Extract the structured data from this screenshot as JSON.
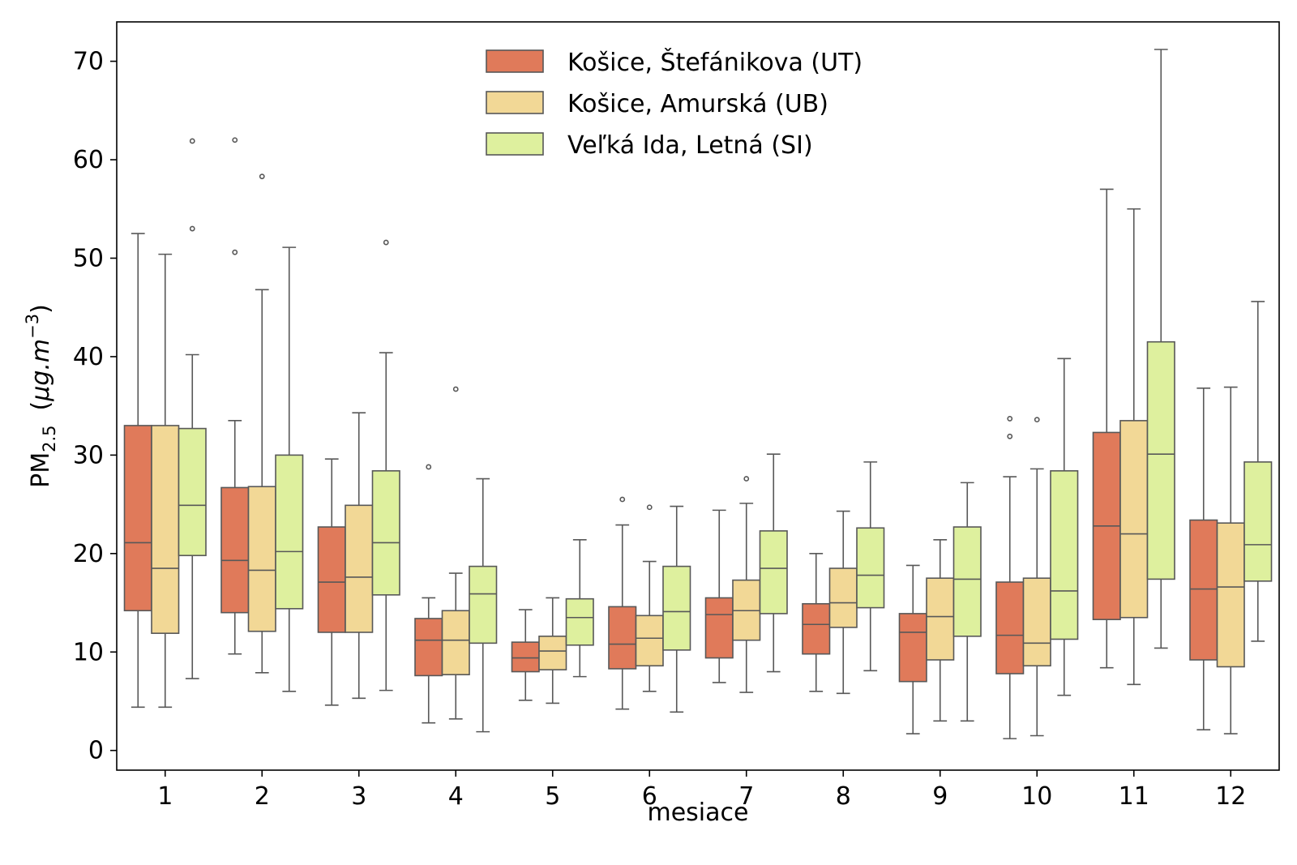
{
  "chart_data": {
    "type": "boxplot",
    "xlabel": "mesiace",
    "ylabel": {
      "main": "PM",
      "sub": "2.5",
      "unit_open": "(",
      "unit_mu": "μg.m",
      "unit_sup": "−3",
      "unit_close": ")"
    },
    "ylim": [
      -2,
      74
    ],
    "yticks": [
      0,
      10,
      20,
      30,
      40,
      50,
      60,
      70
    ],
    "categories": [
      "1",
      "2",
      "3",
      "4",
      "5",
      "6",
      "7",
      "8",
      "9",
      "10",
      "11",
      "12"
    ],
    "legend_position": "top-center",
    "grid": false,
    "series": [
      {
        "name": "Košice, Štefánikova (UT)",
        "color": "#e07a5a",
        "boxes": [
          {
            "whislo": 4.4,
            "q1": 14.2,
            "med": 21.1,
            "q3": 33.0,
            "whishi": 52.5,
            "fliers": []
          },
          {
            "whislo": 9.8,
            "q1": 14.0,
            "med": 19.3,
            "q3": 26.7,
            "whishi": 33.5,
            "fliers": [
              50.6,
              62.0
            ]
          },
          {
            "whislo": 4.6,
            "q1": 12.0,
            "med": 17.1,
            "q3": 22.7,
            "whishi": 29.6,
            "fliers": []
          },
          {
            "whislo": 2.8,
            "q1": 7.6,
            "med": 11.2,
            "q3": 13.4,
            "whishi": 15.5,
            "fliers": [
              28.8
            ]
          },
          {
            "whislo": 5.1,
            "q1": 8.0,
            "med": 9.4,
            "q3": 11.0,
            "whishi": 14.3,
            "fliers": []
          },
          {
            "whislo": 4.2,
            "q1": 8.3,
            "med": 10.8,
            "q3": 14.6,
            "whishi": 22.9,
            "fliers": [
              25.5
            ]
          },
          {
            "whislo": 6.9,
            "q1": 9.4,
            "med": 13.8,
            "q3": 15.5,
            "whishi": 24.4,
            "fliers": []
          },
          {
            "whislo": 6.0,
            "q1": 9.8,
            "med": 12.8,
            "q3": 14.9,
            "whishi": 20.0,
            "fliers": []
          },
          {
            "whislo": 1.7,
            "q1": 7.0,
            "med": 12.0,
            "q3": 13.9,
            "whishi": 18.8,
            "fliers": []
          },
          {
            "whislo": 1.2,
            "q1": 7.8,
            "med": 11.7,
            "q3": 17.1,
            "whishi": 27.8,
            "fliers": [
              31.9,
              33.7
            ]
          },
          {
            "whislo": 8.4,
            "q1": 13.3,
            "med": 22.8,
            "q3": 32.3,
            "whishi": 57.0,
            "fliers": []
          },
          {
            "whislo": 2.1,
            "q1": 9.2,
            "med": 16.4,
            "q3": 23.4,
            "whishi": 36.8,
            "fliers": []
          }
        ]
      },
      {
        "name": "Košice, Amurská (UB)",
        "color": "#f2d896",
        "boxes": [
          {
            "whislo": 4.4,
            "q1": 11.9,
            "med": 18.5,
            "q3": 33.0,
            "whishi": 50.4,
            "fliers": []
          },
          {
            "whislo": 7.9,
            "q1": 12.1,
            "med": 18.3,
            "q3": 26.8,
            "whishi": 46.8,
            "fliers": [
              58.3
            ]
          },
          {
            "whislo": 5.3,
            "q1": 12.0,
            "med": 17.6,
            "q3": 24.9,
            "whishi": 34.3,
            "fliers": []
          },
          {
            "whislo": 3.2,
            "q1": 7.7,
            "med": 11.2,
            "q3": 14.2,
            "whishi": 18.0,
            "fliers": [
              36.7
            ]
          },
          {
            "whislo": 4.8,
            "q1": 8.2,
            "med": 10.1,
            "q3": 11.6,
            "whishi": 15.5,
            "fliers": []
          },
          {
            "whislo": 6.0,
            "q1": 8.6,
            "med": 11.4,
            "q3": 13.7,
            "whishi": 19.2,
            "fliers": [
              24.7
            ]
          },
          {
            "whislo": 5.9,
            "q1": 11.2,
            "med": 14.2,
            "q3": 17.3,
            "whishi": 25.1,
            "fliers": [
              27.6
            ]
          },
          {
            "whislo": 5.8,
            "q1": 12.5,
            "med": 15.0,
            "q3": 18.5,
            "whishi": 24.3,
            "fliers": []
          },
          {
            "whislo": 3.0,
            "q1": 9.2,
            "med": 13.6,
            "q3": 17.5,
            "whishi": 21.4,
            "fliers": []
          },
          {
            "whislo": 1.5,
            "q1": 8.6,
            "med": 10.9,
            "q3": 17.5,
            "whishi": 28.6,
            "fliers": [
              33.6
            ]
          },
          {
            "whislo": 6.7,
            "q1": 13.5,
            "med": 22.0,
            "q3": 33.5,
            "whishi": 55.0,
            "fliers": []
          },
          {
            "whislo": 1.7,
            "q1": 8.5,
            "med": 16.6,
            "q3": 23.1,
            "whishi": 36.9,
            "fliers": []
          }
        ]
      },
      {
        "name": "Veľká Ida, Letná (SI)",
        "color": "#def09e",
        "boxes": [
          {
            "whislo": 7.3,
            "q1": 19.8,
            "med": 24.9,
            "q3": 32.7,
            "whishi": 40.2,
            "fliers": [
              53.0,
              61.9
            ]
          },
          {
            "whislo": 6.0,
            "q1": 14.4,
            "med": 20.2,
            "q3": 30.0,
            "whishi": 51.1,
            "fliers": []
          },
          {
            "whislo": 6.1,
            "q1": 15.8,
            "med": 21.1,
            "q3": 28.4,
            "whishi": 40.4,
            "fliers": [
              51.6
            ]
          },
          {
            "whislo": 1.9,
            "q1": 10.9,
            "med": 15.9,
            "q3": 18.7,
            "whishi": 27.6,
            "fliers": []
          },
          {
            "whislo": 7.5,
            "q1": 10.7,
            "med": 13.5,
            "q3": 15.4,
            "whishi": 21.4,
            "fliers": []
          },
          {
            "whislo": 3.9,
            "q1": 10.2,
            "med": 14.1,
            "q3": 18.7,
            "whishi": 24.8,
            "fliers": []
          },
          {
            "whislo": 8.0,
            "q1": 13.9,
            "med": 18.5,
            "q3": 22.3,
            "whishi": 30.1,
            "fliers": []
          },
          {
            "whislo": 8.1,
            "q1": 14.5,
            "med": 17.8,
            "q3": 22.6,
            "whishi": 29.3,
            "fliers": []
          },
          {
            "whislo": 3.0,
            "q1": 11.6,
            "med": 17.4,
            "q3": 22.7,
            "whishi": 27.2,
            "fliers": []
          },
          {
            "whislo": 5.6,
            "q1": 11.3,
            "med": 16.2,
            "q3": 28.4,
            "whishi": 39.8,
            "fliers": []
          },
          {
            "whislo": 10.4,
            "q1": 17.4,
            "med": 30.1,
            "q3": 41.5,
            "whishi": 71.2,
            "fliers": []
          },
          {
            "whislo": 11.1,
            "q1": 17.2,
            "med": 20.9,
            "q3": 29.3,
            "whishi": 45.6,
            "fliers": []
          }
        ]
      }
    ]
  }
}
